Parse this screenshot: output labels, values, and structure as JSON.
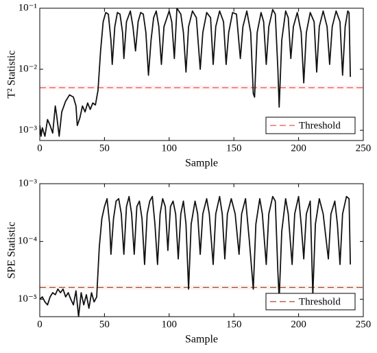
{
  "chart_data": [
    {
      "type": "line",
      "xlabel": "Sample",
      "ylabel": "T² Statistic",
      "yscale": "log",
      "xlim": [
        0,
        250
      ],
      "xticks": [
        0,
        50,
        100,
        150,
        200,
        250
      ],
      "ylim": [
        0.00068,
        0.1
      ],
      "yticks": [
        {
          "value": 0.001,
          "label": "10⁻³"
        },
        {
          "value": 0.01,
          "label": "10⁻²"
        },
        {
          "value": 0.1,
          "label": "10⁻¹"
        }
      ],
      "legend": "lower right",
      "threshold": {
        "name": "Threshold",
        "value": 0.005,
        "color": "#e8534f"
      },
      "x": [
        0,
        1,
        2,
        4,
        6,
        8,
        10,
        12,
        13,
        15,
        17,
        20,
        23,
        26,
        28,
        29,
        31,
        33,
        35,
        37,
        39,
        41,
        43,
        45,
        47,
        49,
        51,
        53,
        55,
        56,
        58,
        60,
        62,
        64,
        65,
        67,
        70,
        72,
        74,
        76,
        78,
        80,
        82,
        84,
        86,
        88,
        90,
        92,
        94,
        96,
        100,
        102,
        104,
        106,
        109,
        111,
        113,
        115,
        118,
        121,
        124,
        126,
        129,
        132,
        134,
        136,
        139,
        142,
        144,
        146,
        149,
        152,
        155,
        157,
        160,
        163,
        165,
        166,
        168,
        171,
        173,
        175,
        177,
        180,
        182,
        184,
        185,
        187,
        190,
        192,
        194,
        196,
        199,
        202,
        204,
        206,
        209,
        212,
        214,
        216,
        219,
        222,
        224,
        226,
        229,
        232,
        234,
        236,
        238,
        239,
        240
      ],
      "series": [
        {
          "color": "#111111",
          "values": [
            0.0012,
            0.0008,
            0.0011,
            0.0008,
            0.0015,
            0.0012,
            0.0009,
            0.0025,
            0.0018,
            0.0008,
            0.002,
            0.003,
            0.0038,
            0.0035,
            0.0025,
            0.0012,
            0.0016,
            0.0025,
            0.002,
            0.0028,
            0.0022,
            0.0028,
            0.0026,
            0.0045,
            0.02,
            0.06,
            0.085,
            0.08,
            0.03,
            0.012,
            0.05,
            0.085,
            0.08,
            0.04,
            0.015,
            0.06,
            0.09,
            0.05,
            0.02,
            0.06,
            0.085,
            0.08,
            0.04,
            0.008,
            0.03,
            0.07,
            0.09,
            0.05,
            0.012,
            0.05,
            0.09,
            0.06,
            0.015,
            0.1,
            0.08,
            0.04,
            0.009,
            0.05,
            0.09,
            0.07,
            0.01,
            0.04,
            0.085,
            0.07,
            0.012,
            0.05,
            0.09,
            0.06,
            0.012,
            0.04,
            0.085,
            0.08,
            0.015,
            0.05,
            0.09,
            0.04,
            0.004,
            0.0035,
            0.04,
            0.085,
            0.06,
            0.012,
            0.05,
            0.095,
            0.08,
            0.01,
            0.0024,
            0.03,
            0.09,
            0.07,
            0.015,
            0.05,
            0.085,
            0.04,
            0.006,
            0.04,
            0.085,
            0.06,
            0.009,
            0.05,
            0.09,
            0.05,
            0.012,
            0.05,
            0.09,
            0.06,
            0.008,
            0.05,
            0.09,
            0.085,
            0.0075
          ]
        }
      ]
    },
    {
      "type": "line",
      "xlabel": "Sample",
      "ylabel": "SPE Statistic",
      "yscale": "log",
      "xlim": [
        0,
        250
      ],
      "xticks": [
        0,
        50,
        100,
        150,
        200,
        250
      ],
      "ylim": [
        5e-06,
        0.001
      ],
      "yticks": [
        {
          "value": 1e-05,
          "label": "10⁻⁵"
        },
        {
          "value": 0.0001,
          "label": "10⁻⁴"
        },
        {
          "value": 0.001,
          "label": "10⁻³"
        }
      ],
      "legend": "lower right",
      "threshold": {
        "name": "Threshold",
        "value": 1.6e-05,
        "color": "#a8482a"
      },
      "x": [
        0,
        2,
        4,
        6,
        8,
        10,
        12,
        14,
        16,
        18,
        20,
        22,
        24,
        26,
        28,
        30,
        32,
        34,
        36,
        38,
        40,
        42,
        44,
        46,
        48,
        50,
        52,
        54,
        55,
        57,
        59,
        61,
        63,
        65,
        67,
        69,
        71,
        73,
        75,
        77,
        79,
        81,
        83,
        85,
        87,
        89,
        91,
        93,
        95,
        97,
        99,
        101,
        103,
        105,
        107,
        109,
        111,
        113,
        115,
        117,
        120,
        122,
        124,
        126,
        129,
        131,
        134,
        136,
        139,
        141,
        143,
        145,
        148,
        151,
        154,
        156,
        159,
        162,
        165,
        167,
        170,
        172,
        175,
        177,
        180,
        182,
        184,
        185,
        187,
        190,
        192,
        195,
        197,
        200,
        202,
        204,
        206,
        209,
        211,
        213,
        216,
        219,
        223,
        225,
        228,
        230,
        232,
        234,
        237,
        239,
        240
      ],
      "series": [
        {
          "color": "#111111",
          "values": [
            1e-05,
            1.1e-05,
            9e-06,
            8e-06,
            1.1e-05,
            1.3e-05,
            1.2e-05,
            1.5e-05,
            1.3e-05,
            1.5e-05,
            1.1e-05,
            1.3e-05,
            1e-05,
            8e-06,
            1.4e-05,
            5e-06,
            1.3e-05,
            8e-06,
            1.2e-05,
            7e-06,
            1.3e-05,
            9e-06,
            1.1e-05,
            8e-05,
            0.00025,
            0.0004,
            0.00055,
            0.0002,
            6e-05,
            0.00025,
            0.0005,
            0.00055,
            0.0003,
            6e-05,
            0.0004,
            0.0006,
            0.0003,
            6e-05,
            0.0004,
            0.0005,
            0.00025,
            4e-05,
            0.0003,
            0.0005,
            0.0006,
            0.0002,
            4e-05,
            0.0003,
            0.00055,
            0.0004,
            7e-05,
            0.0004,
            0.0005,
            0.0003,
            5e-05,
            0.0003,
            0.0005,
            0.0002,
            1.5e-05,
            0.0002,
            0.0005,
            0.0003,
            6e-05,
            0.0003,
            0.00055,
            0.0003,
            4e-05,
            0.0003,
            0.0006,
            0.0003,
            5e-05,
            0.0003,
            0.00055,
            0.0003,
            6e-05,
            0.0003,
            0.00055,
            0.0001,
            1.5e-05,
            0.0002,
            0.00055,
            0.0003,
            4e-05,
            0.0003,
            0.0006,
            0.0005,
            3e-05,
            1e-05,
            0.00015,
            0.00055,
            0.0003,
            4e-05,
            0.0003,
            0.0006,
            0.0002,
            5e-05,
            0.0003,
            0.0005,
            1.2e-05,
            0.0002,
            0.00055,
            0.0003,
            5e-05,
            0.0003,
            0.0005,
            0.0002,
            4e-05,
            0.0003,
            0.0006,
            0.00055,
            4e-05
          ]
        }
      ]
    }
  ]
}
